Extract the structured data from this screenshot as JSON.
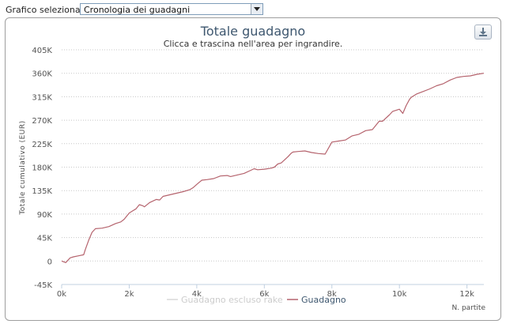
{
  "toolbar": {
    "label": "Grafico selezionato",
    "selected": "Cronologia dei guadagni"
  },
  "export_icon": "download-icon",
  "chart_data": {
    "type": "line",
    "title": "Totale guadagno",
    "subtitle": "Clicca e trascina nell'area per ingrandire.",
    "ylabel": "Totale cumulativo (EUR)",
    "xlabel": "N. partite",
    "xlim": [
      0,
      12500
    ],
    "ylim": [
      -45000,
      405000
    ],
    "xticks": [
      0,
      2000,
      4000,
      6000,
      8000,
      10000,
      12000
    ],
    "xtick_labels": [
      "0k",
      "2k",
      "4k",
      "6k",
      "8k",
      "10k",
      "12k"
    ],
    "yticks": [
      -45000,
      0,
      45000,
      90000,
      135000,
      180000,
      225000,
      270000,
      315000,
      360000,
      405000
    ],
    "ytick_labels": [
      "-45K",
      "0",
      "45K",
      "90K",
      "135K",
      "180K",
      "225K",
      "270K",
      "315K",
      "360K",
      "405K"
    ],
    "grid": true,
    "legend_position": "bottom-center",
    "series": [
      {
        "name": "Guadagno escluso rake",
        "color": "#d9d9d9",
        "visible": false,
        "x": [],
        "y": []
      },
      {
        "name": "Guadagno",
        "color": "#b5636d",
        "visible": true,
        "x": [
          0,
          120,
          250,
          350,
          500,
          650,
          700,
          800,
          900,
          1000,
          1200,
          1400,
          1600,
          1750,
          1850,
          2000,
          2100,
          2200,
          2300,
          2400,
          2450,
          2600,
          2800,
          2900,
          3000,
          3200,
          3400,
          3600,
          3800,
          3900,
          4000,
          4150,
          4300,
          4500,
          4700,
          4900,
          5000,
          5200,
          5400,
          5600,
          5700,
          5800,
          6000,
          6200,
          6300,
          6400,
          6500,
          6700,
          6800,
          6850,
          7000,
          7200,
          7400,
          7600,
          7800,
          8000,
          8200,
          8400,
          8600,
          8800,
          9000,
          9200,
          9400,
          9500,
          9700,
          9800,
          10000,
          10100,
          10200,
          10300,
          10350,
          10500,
          10700,
          10900,
          11100,
          11300,
          11500,
          11700,
          11900,
          12100,
          12300,
          12500
        ],
        "y": [
          0,
          -3000,
          6000,
          8000,
          10000,
          12000,
          22000,
          40000,
          55000,
          62000,
          63000,
          66000,
          72000,
          75000,
          80000,
          92000,
          96000,
          100000,
          108000,
          106000,
          104000,
          112000,
          118000,
          117000,
          124000,
          127000,
          130000,
          133000,
          137000,
          141000,
          147000,
          155000,
          156000,
          158000,
          163000,
          164000,
          162000,
          165000,
          168000,
          174000,
          177000,
          175000,
          176000,
          178000,
          180000,
          186000,
          188000,
          200000,
          207000,
          209000,
          210000,
          211000,
          208000,
          206000,
          205000,
          228000,
          230000,
          232000,
          240000,
          243000,
          250000,
          252000,
          268000,
          268000,
          280000,
          287000,
          291000,
          283000,
          298000,
          310000,
          314000,
          320000,
          325000,
          330000,
          336000,
          340000,
          347000,
          352000,
          354000,
          355000,
          358000,
          360000
        ]
      }
    ]
  }
}
